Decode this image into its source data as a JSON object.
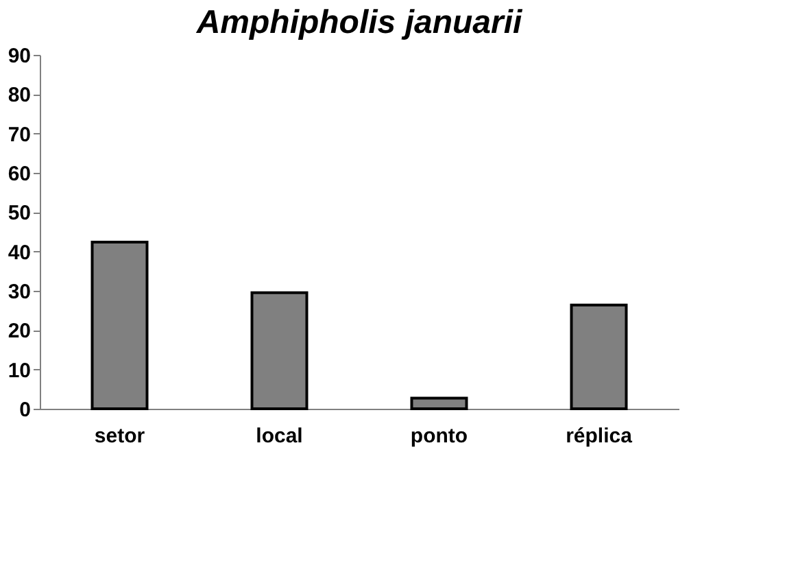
{
  "chart_data": {
    "type": "bar",
    "title": "Amphipholis januarii",
    "categories": [
      "setor",
      "local",
      "ponto",
      "réplica"
    ],
    "values": [
      42.4,
      29.5,
      2.7,
      26.4
    ],
    "color": "#808080",
    "ylim": [
      0,
      90
    ],
    "yticks": [
      0,
      10,
      20,
      30,
      40,
      50,
      60,
      70,
      80,
      90
    ],
    "grid": false
  }
}
